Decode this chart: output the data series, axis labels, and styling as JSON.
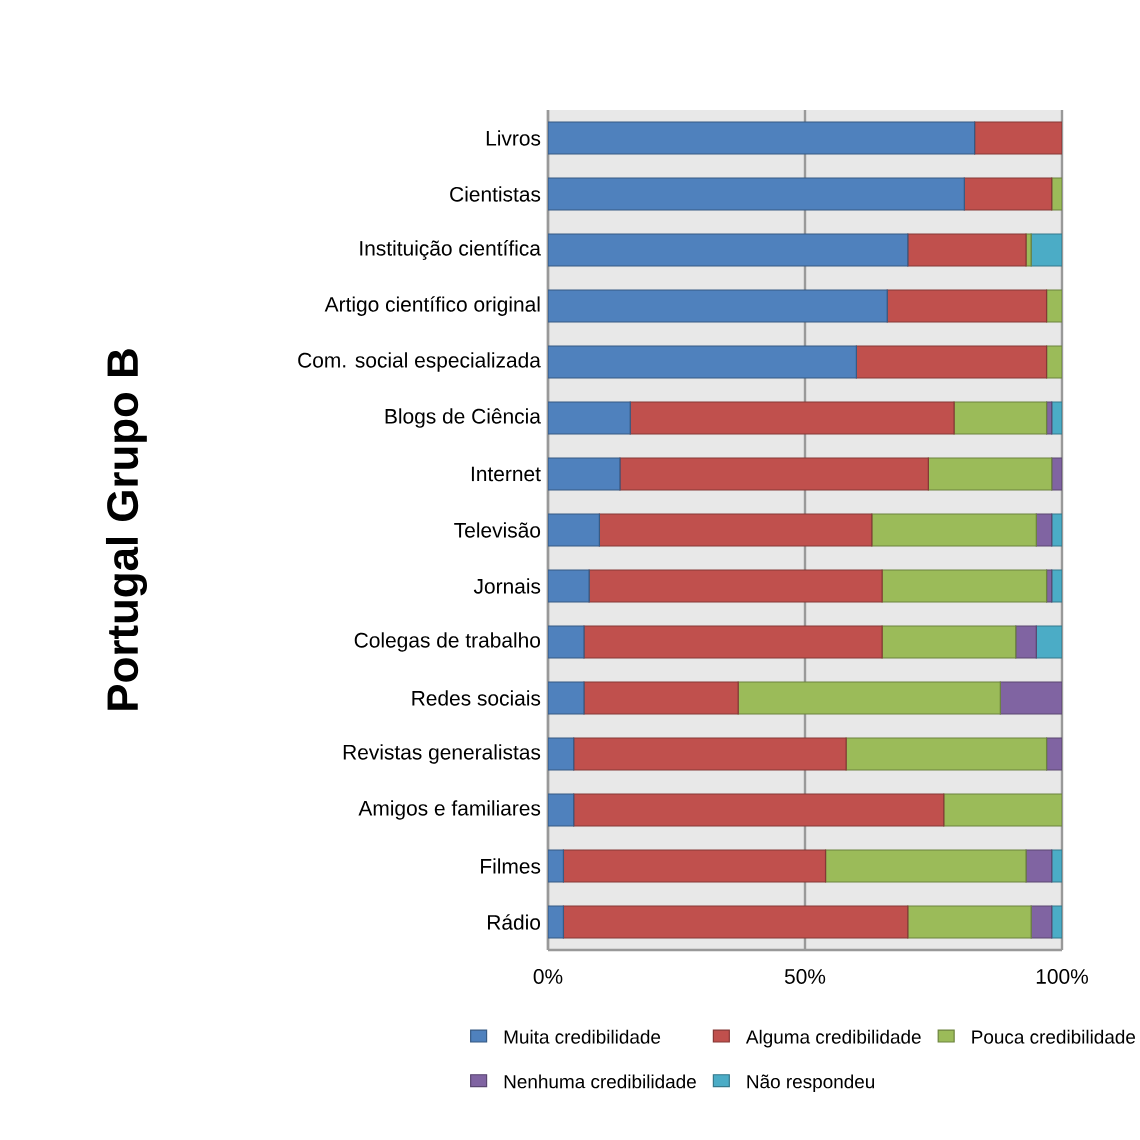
{
  "chart_data": {
    "type": "bar",
    "orientation": "horizontal",
    "stacked": true,
    "ylabel": "Portugal Grupo B",
    "categories": [
      "Livros",
      "Cientistas",
      "Instituição científica",
      "Artigo científico original",
      "Com. social especializada",
      "Blogs de Ciência",
      "Internet",
      "Televisão",
      "Jornais",
      "Colegas de trabalho",
      "Redes sociais",
      "Revistas generalistas",
      "Amigos e familiares",
      "Filmes",
      "Rádio"
    ],
    "series": [
      {
        "name": "Muita credibilidade",
        "color": "#4f81bd",
        "values": [
          83,
          81,
          70,
          66,
          60,
          16,
          14,
          10,
          8,
          7,
          7,
          5,
          5,
          3,
          3
        ]
      },
      {
        "name": "Alguma credibilidade",
        "color": "#c0504d",
        "values": [
          17,
          17,
          23,
          31,
          37,
          63,
          60,
          53,
          57,
          58,
          30,
          53,
          72,
          51,
          67
        ]
      },
      {
        "name": "Pouca credibilidade",
        "color": "#9bbb59",
        "values": [
          0,
          2,
          1,
          3,
          3,
          18,
          24,
          32,
          32,
          26,
          51,
          39,
          23,
          39,
          24
        ]
      },
      {
        "name": "Nenhuma credibilidade",
        "color": "#8064a2",
        "values": [
          0,
          0,
          0,
          0,
          0,
          1,
          2,
          3,
          1,
          4,
          12,
          3,
          0,
          5,
          4
        ]
      },
      {
        "name": "Não respondeu",
        "color": "#4bacc6",
        "values": [
          0,
          0,
          6,
          0,
          0,
          2,
          0,
          2,
          2,
          5,
          0,
          0,
          0,
          2,
          2
        ]
      }
    ],
    "xlim": [
      0,
      100
    ],
    "xticks": [
      {
        "value": 0,
        "label": "0%"
      },
      {
        "value": 50,
        "label": "50%"
      },
      {
        "value": 100,
        "label": "100%"
      }
    ],
    "grid": "x",
    "legend": "bottom"
  }
}
